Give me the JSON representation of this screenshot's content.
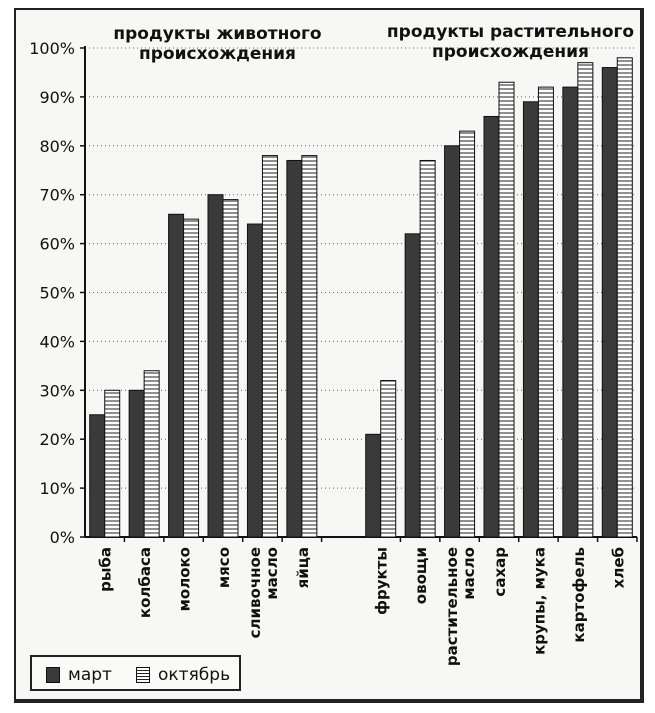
{
  "chart_data": {
    "type": "bar",
    "ylim": [
      0,
      100
    ],
    "yticks": [
      "0%",
      "10%",
      "20%",
      "30%",
      "40%",
      "50%",
      "60%",
      "70%",
      "80%",
      "90%",
      "100%"
    ],
    "groups": [
      {
        "title": "продукты животного происхождения",
        "categories": [
          "рыба",
          "колбаса",
          "молоко",
          "мясо",
          "сливочное масло",
          "яйца"
        ]
      },
      {
        "title": "продукты растительного происхождения",
        "categories": [
          "фрукты",
          "овощи",
          "растительное масло",
          "сахар",
          "крупы, мука",
          "картофель",
          "хлеб"
        ]
      }
    ],
    "categories": [
      "рыба",
      "колбаса",
      "молоко",
      "мясо",
      "сливочное масло",
      "яйца",
      "фрукты",
      "овощи",
      "растительное масло",
      "сахар",
      "крупы, мука",
      "картофель",
      "хлеб"
    ],
    "series": [
      {
        "name": "март",
        "color": "#3a3a3a",
        "pattern": "solid",
        "values": [
          25,
          30,
          66,
          70,
          64,
          77,
          21,
          62,
          80,
          86,
          89,
          92,
          96
        ]
      },
      {
        "name": "октябрь",
        "color": "#ffffff",
        "pattern": "horizontal-lines",
        "values": [
          30,
          34,
          65,
          69,
          78,
          78,
          32,
          77,
          83,
          93,
          92,
          97,
          98
        ]
      }
    ],
    "grid": "horizontal dotted",
    "legend_position": "bottom-left"
  }
}
